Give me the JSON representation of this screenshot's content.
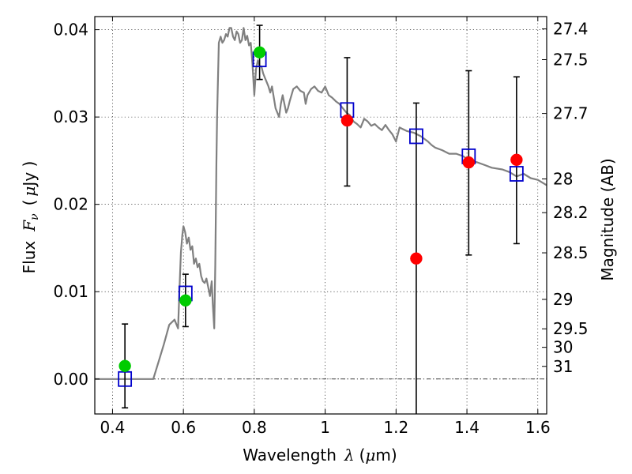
{
  "chart_data": {
    "type": "scatter",
    "xlim": [
      0.35,
      1.625
    ],
    "ylim": [
      -0.004,
      0.0415
    ],
    "grid": true,
    "xaxis": {
      "label_prefix": "Wavelength",
      "symbol": "λ",
      "unit_open": "(",
      "unit_mu": "μ",
      "unit_rest": "m)",
      "ticks": [
        0.4,
        0.6,
        0.8,
        1.0,
        1.2,
        1.4,
        1.6
      ],
      "tick_labels": [
        "0.4",
        "0.6",
        "0.8",
        "1",
        "1.2",
        "1.4",
        "1.6"
      ]
    },
    "yaxis": {
      "label_prefix": "Flux",
      "symbol": "F",
      "symbol_sub": "ν",
      "unit_open": "(",
      "unit_mu": "μ",
      "unit_rest": "Jy )",
      "ticks": [
        0.0,
        0.01,
        0.02,
        0.03,
        0.04
      ],
      "tick_labels": [
        "0.00",
        "0.01",
        "0.02",
        "0.03",
        "0.04"
      ]
    },
    "right_axis": {
      "label": "Magnitude (AB)",
      "ticks": [
        {
          "flux": 0.04009,
          "label": "27.4"
        },
        {
          "flux": 0.03657,
          "label": "27.5"
        },
        {
          "flux": 0.03041,
          "label": "27.7"
        },
        {
          "flux": 0.02291,
          "label": "28"
        },
        {
          "flux": 0.01905,
          "label": "28.2"
        },
        {
          "flux": 0.01445,
          "label": "28.5"
        },
        {
          "flux": 0.00912,
          "label": "29"
        },
        {
          "flux": 0.00575,
          "label": "29.5"
        },
        {
          "flux": 0.00363,
          "label": "30"
        },
        {
          "flux": 0.00145,
          "label": "31"
        }
      ]
    },
    "series": [
      {
        "kind": "spectrum",
        "color": "#808080",
        "x": [
          0.35,
          0.5,
          0.515,
          0.53,
          0.545,
          0.56,
          0.575,
          0.585,
          0.59,
          0.593,
          0.597,
          0.6,
          0.605,
          0.61,
          0.615,
          0.62,
          0.625,
          0.63,
          0.635,
          0.64,
          0.645,
          0.65,
          0.655,
          0.66,
          0.665,
          0.67,
          0.675,
          0.68,
          0.683,
          0.687,
          0.69,
          0.693,
          0.695,
          0.7,
          0.705,
          0.71,
          0.715,
          0.72,
          0.725,
          0.73,
          0.735,
          0.74,
          0.745,
          0.75,
          0.755,
          0.76,
          0.765,
          0.77,
          0.775,
          0.78,
          0.785,
          0.79,
          0.795,
          0.8,
          0.805,
          0.81,
          0.815,
          0.82,
          0.825,
          0.83,
          0.835,
          0.84,
          0.845,
          0.85,
          0.86,
          0.87,
          0.875,
          0.88,
          0.885,
          0.89,
          0.895,
          0.9,
          0.91,
          0.92,
          0.93,
          0.94,
          0.945,
          0.95,
          0.96,
          0.97,
          0.98,
          0.99,
          1.0,
          1.01,
          1.02,
          1.03,
          1.04,
          1.05,
          1.06,
          1.07,
          1.08,
          1.09,
          1.1,
          1.11,
          1.12,
          1.13,
          1.14,
          1.15,
          1.16,
          1.17,
          1.18,
          1.19,
          1.2,
          1.21,
          1.22,
          1.23,
          1.24,
          1.25,
          1.27,
          1.29,
          1.3,
          1.31,
          1.33,
          1.35,
          1.37,
          1.39,
          1.4,
          1.41,
          1.43,
          1.45,
          1.47,
          1.5,
          1.52,
          1.54,
          1.56,
          1.58,
          1.6,
          1.625
        ],
        "y": [
          0.0,
          0.0,
          0.0,
          0.002,
          0.004,
          0.0062,
          0.0068,
          0.0058,
          0.0115,
          0.0145,
          0.0165,
          0.0175,
          0.0168,
          0.0155,
          0.0162,
          0.0148,
          0.0152,
          0.0132,
          0.0138,
          0.0128,
          0.0132,
          0.0118,
          0.0112,
          0.011,
          0.0115,
          0.0105,
          0.0095,
          0.0112,
          0.0085,
          0.0058,
          0.013,
          0.0245,
          0.03,
          0.0385,
          0.0392,
          0.0385,
          0.0388,
          0.0395,
          0.0392,
          0.0402,
          0.0402,
          0.0392,
          0.0388,
          0.0398,
          0.0395,
          0.0385,
          0.0388,
          0.0402,
          0.0388,
          0.0393,
          0.0382,
          0.0385,
          0.036,
          0.0325,
          0.0355,
          0.0365,
          0.0358,
          0.0358,
          0.035,
          0.0345,
          0.034,
          0.0335,
          0.0328,
          0.0335,
          0.031,
          0.03,
          0.0315,
          0.0325,
          0.0315,
          0.0305,
          0.031,
          0.0318,
          0.0332,
          0.0335,
          0.033,
          0.0328,
          0.0315,
          0.0325,
          0.0332,
          0.0335,
          0.033,
          0.0328,
          0.0335,
          0.0325,
          0.0322,
          0.0318,
          0.0315,
          0.031,
          0.0305,
          0.0302,
          0.0295,
          0.0292,
          0.0288,
          0.0298,
          0.0295,
          0.029,
          0.0292,
          0.0288,
          0.0285,
          0.0291,
          0.0285,
          0.028,
          0.0272,
          0.0288,
          0.0286,
          0.0284,
          0.0283,
          0.0282,
          0.0278,
          0.0272,
          0.0268,
          0.0265,
          0.0262,
          0.0258,
          0.0258,
          0.0255,
          0.0252,
          0.025,
          0.0248,
          0.0245,
          0.0242,
          0.024,
          0.0237,
          0.0232,
          0.0235,
          0.023,
          0.0228,
          0.0222
        ]
      },
      {
        "kind": "model-photometry",
        "marker": "open-square",
        "color": "#0000cc",
        "x": [
          0.435,
          0.606,
          0.815,
          1.062,
          1.257,
          1.405,
          1.54
        ],
        "y": [
          0.0,
          0.0098,
          0.0366,
          0.0308,
          0.0278,
          0.0255,
          0.0235
        ]
      },
      {
        "kind": "detections",
        "marker": "filled-circle",
        "color": "#00cc00",
        "x": [
          0.435,
          0.606,
          0.815
        ],
        "y": [
          0.0015,
          0.009,
          0.0374
        ]
      },
      {
        "kind": "measurements",
        "marker": "filled-circle",
        "color": "#ff0000",
        "x": [
          1.062,
          1.257,
          1.405,
          1.54
        ],
        "y": [
          0.0296,
          0.0138,
          0.0248,
          0.0251
        ]
      }
    ],
    "error_bars": [
      {
        "x": 0.435,
        "low": -0.0033,
        "high": 0.0063
      },
      {
        "x": 0.606,
        "low": 0.006,
        "high": 0.012
      },
      {
        "x": 0.815,
        "low": 0.0343,
        "high": 0.0405
      },
      {
        "x": 1.062,
        "low": 0.0221,
        "high": 0.0368
      },
      {
        "x": 1.257,
        "low": -0.0042,
        "high": 0.0316
      },
      {
        "x": 1.405,
        "low": 0.0142,
        "high": 0.0353
      },
      {
        "x": 1.54,
        "low": 0.0155,
        "high": 0.0346
      }
    ],
    "zero_line": 0.0
  }
}
